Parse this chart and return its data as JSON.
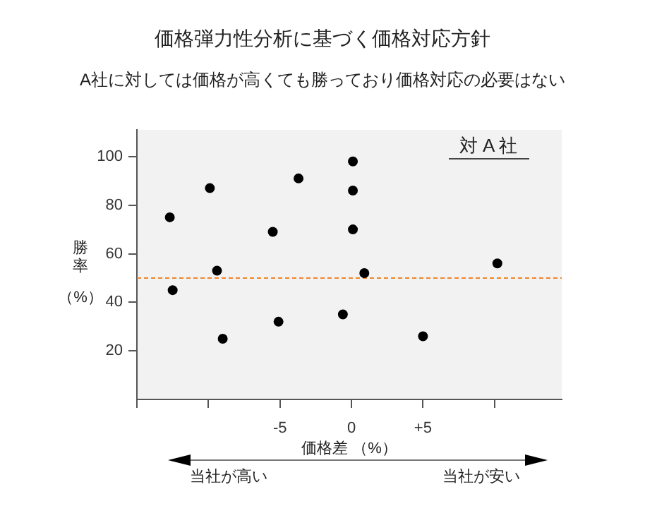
{
  "chart_data": {
    "type": "scatter",
    "title": "価格弾力性分析に基づく価格対応方針",
    "subtitle": "A社に対しては価格が高くても勝っており価格対応の必要はない",
    "xlabel": "価格差 （%）",
    "ylabel": "勝率（%）",
    "annotations": [
      "対 A 社",
      "当社が高い",
      "当社が安い"
    ],
    "xlim": [
      -15,
      14.7
    ],
    "ylim": [
      0,
      111
    ],
    "xticks": [
      {
        "value": -15,
        "label": null
      },
      {
        "value": -10,
        "label": null
      },
      {
        "value": -5,
        "label": "-5"
      },
      {
        "value": 0,
        "label": "0"
      },
      {
        "value": 5,
        "label": "+5"
      },
      {
        "value": 10,
        "label": null
      }
    ],
    "yticks": [
      20,
      40,
      60,
      80,
      100
    ],
    "marker": "circle",
    "ref_lines": [
      {
        "axis": "y",
        "value": 50,
        "color": "#f0862a",
        "line_style": "dashed"
      }
    ],
    "series": [
      {
        "color": "#000000",
        "x": [
          -12.7,
          -12.5,
          -9.9,
          -9.4,
          -9.0,
          -5.5,
          -5.1,
          -3.7,
          -0.6,
          0.1,
          0.1,
          0.1,
          0.9,
          5.0,
          10.2
        ],
        "values": [
          75,
          45,
          87,
          53,
          25,
          69,
          32,
          91,
          35,
          98,
          86,
          70,
          52,
          26,
          56
        ]
      }
    ]
  }
}
